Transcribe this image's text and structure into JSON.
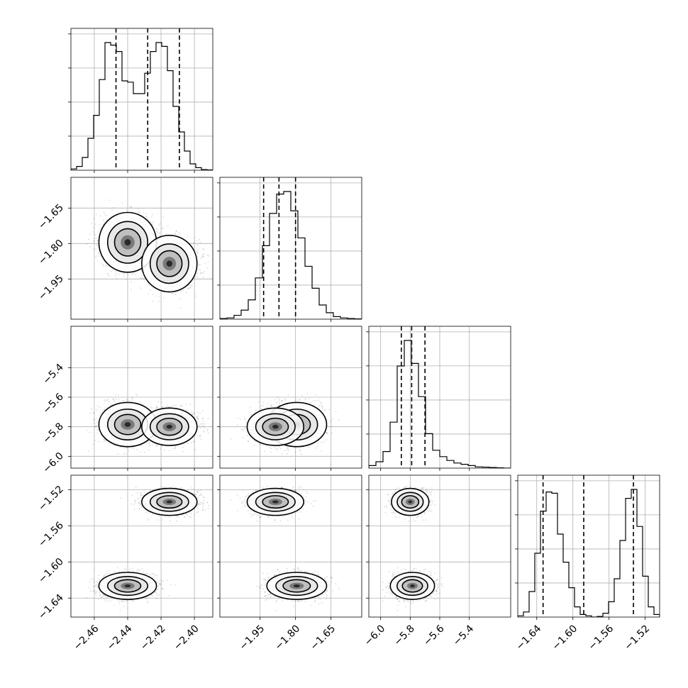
{
  "chart_data": {
    "type": "corner",
    "n_params": 4,
    "ranges": [
      [
        -2.474,
        -2.389
      ],
      [
        -2.12,
        -1.52
      ],
      [
        -6.08,
        -5.12
      ],
      [
        -1.661,
        -1.504
      ]
    ],
    "ticks": [
      [
        -2.46,
        -2.44,
        -2.42,
        -2.4
      ],
      [
        -1.95,
        -1.8,
        -1.65
      ],
      [
        -6.0,
        -5.8,
        -5.6,
        -5.4
      ],
      [
        -1.64,
        -1.6,
        -1.56,
        -1.52
      ]
    ],
    "tick_labels": [
      [
        "−2.46",
        "−2.44",
        "−2.42",
        "−2.40"
      ],
      [
        "−1.95",
        "−1.80",
        "−1.65"
      ],
      [
        "−6.0",
        "−5.8",
        "−5.6",
        "−5.4"
      ],
      [
        "−1.64",
        "−1.60",
        "−1.56",
        "−1.52"
      ]
    ],
    "quantiles": [
      [
        -2.447,
        -2.428,
        -2.409
      ],
      [
        -1.935,
        -1.87,
        -1.8
      ],
      [
        -5.86,
        -5.79,
        -5.7
      ],
      [
        -1.633,
        -1.588,
        -1.533
      ]
    ],
    "histograms": [
      {
        "counts": [
          1,
          3,
          10,
          25,
          43,
          71,
          100,
          98,
          93,
          70,
          69,
          60,
          60,
          76,
          93,
          100,
          97,
          78,
          50,
          30,
          15,
          5,
          2,
          0.5,
          0.2
        ]
      },
      {
        "counts": [
          0.5,
          1,
          3,
          7,
          15,
          32,
          57,
          82,
          97,
          99,
          84,
          63,
          41,
          24,
          11,
          5,
          2,
          1,
          0.5,
          0.2
        ]
      },
      {
        "counts": [
          2,
          5,
          13,
          36,
          80,
          100,
          82,
          56,
          27,
          14,
          9,
          6,
          4,
          3,
          2,
          1,
          0.8,
          0.5,
          0.2,
          0
        ]
      },
      {
        "counts": [
          1,
          4,
          20,
          50,
          83,
          98,
          97,
          65,
          43,
          23,
          8,
          2,
          1,
          0,
          0.5,
          3,
          12,
          30,
          60,
          93,
          100,
          71,
          32,
          8,
          2
        ]
      }
    ],
    "clusters": [
      {
        "weight": 0.5,
        "mean": [
          -2.44,
          -1.795,
          -5.785,
          -1.6265
        ],
        "sd": [
          0.0075,
          0.055,
          0.065,
          0.0065
        ]
      },
      {
        "weight": 0.5,
        "mean": [
          -2.415,
          -1.885,
          -5.8,
          -1.5335
        ],
        "sd": [
          0.0072,
          0.052,
          0.055,
          0.0065
        ]
      }
    ],
    "grid": true,
    "colors": {
      "line": "#000000",
      "points": "#000000",
      "grid": "#b0b0b0"
    }
  }
}
